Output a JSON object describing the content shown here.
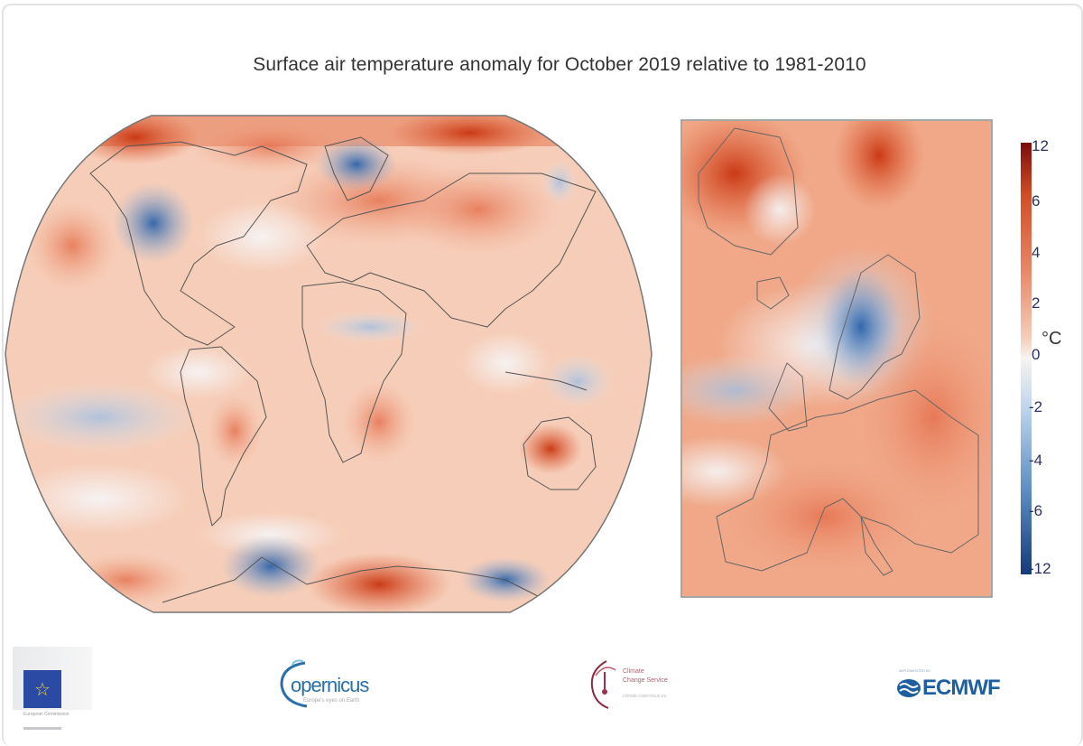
{
  "title": "Surface air temperature anomaly for October 2019 relative to 1981-2010",
  "colorbar": {
    "unit": "°C",
    "ticks": [
      "12",
      "6",
      "4",
      "2",
      "0",
      "-2",
      "-4",
      "-6",
      "-12"
    ],
    "colors": {
      "max": "#7a0c0c",
      "warm": "#e0603a",
      "neutral": "#f7f3f0",
      "cool": "#6f9ccb",
      "min": "#163a78"
    }
  },
  "panels": {
    "global": {
      "name": "World map"
    },
    "europe": {
      "name": "Europe map"
    }
  },
  "logos": {
    "european_commission": {
      "text": "European Commission"
    },
    "copernicus": {
      "text": "opernicus",
      "tagline": "Europe's eyes on Earth"
    },
    "c3s": {
      "line1": "Climate",
      "line2": "Change Service",
      "url": "climate.copernicus.eu"
    },
    "ecmwf": {
      "text": "ECMWF",
      "prefix": "IMPLEMENTED BY"
    }
  }
}
